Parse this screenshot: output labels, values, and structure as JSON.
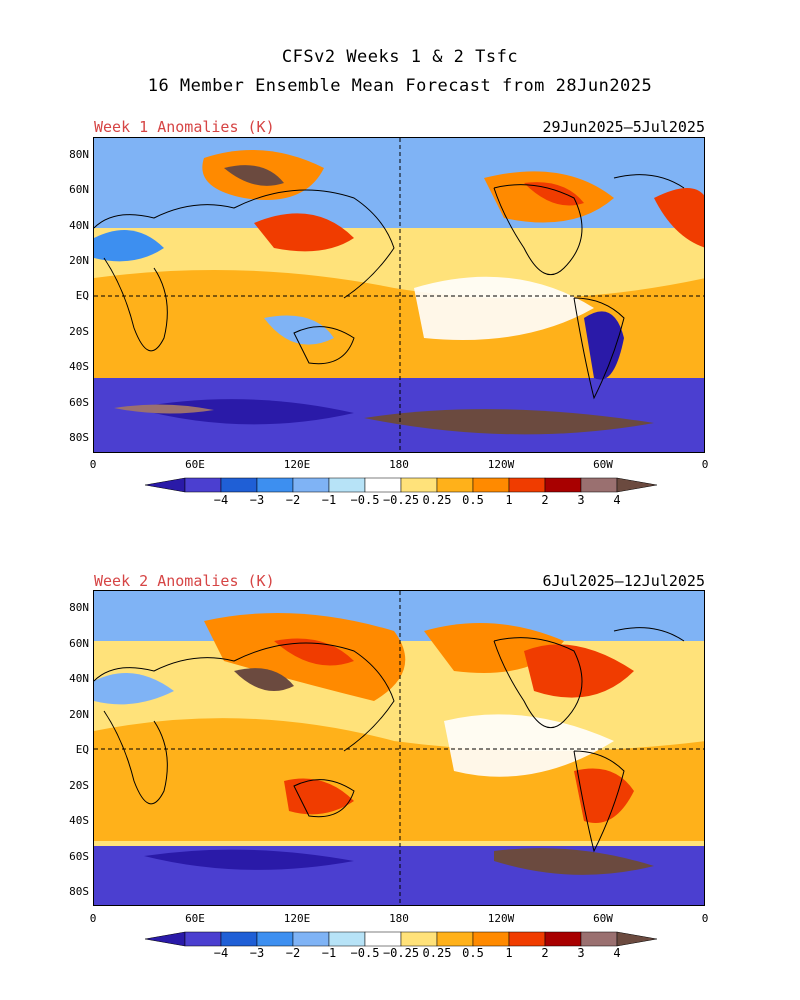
{
  "title_line1": "CFSv2 Weeks 1 & 2 Tsfc",
  "title_line2": "16 Member Ensemble Mean Forecast from 28Jun2025",
  "panels": [
    {
      "label": "Week 1 Anomalies (K)",
      "dates": "29Jun2025—5Jul2025"
    },
    {
      "label": "Week 2 Anomalies (K)",
      "dates": "6Jul2025—12Jul2025"
    }
  ],
  "lat_labels": [
    "80N",
    "60N",
    "40N",
    "20N",
    "EQ",
    "20S",
    "40S",
    "60S",
    "80S"
  ],
  "lon_labels": [
    "0",
    "60E",
    "120E",
    "180",
    "120W",
    "60W",
    "0"
  ],
  "colorbar": {
    "labels": [
      "−4",
      "−3",
      "−2",
      "−1",
      "−0.5",
      "−0.25",
      "0.25",
      "0.5",
      "1",
      "2",
      "3",
      "4"
    ],
    "colors": [
      "#2a1aa8",
      "#4b3fd0",
      "#1f5fd6",
      "#3d8ff0",
      "#7fb3f5",
      "#b7e3f7",
      "#ffffff",
      "#ffe27a",
      "#ffb11a",
      "#ff8a00",
      "#f03c00",
      "#a80000",
      "#9a7070",
      "#6b4a3f"
    ]
  }
}
